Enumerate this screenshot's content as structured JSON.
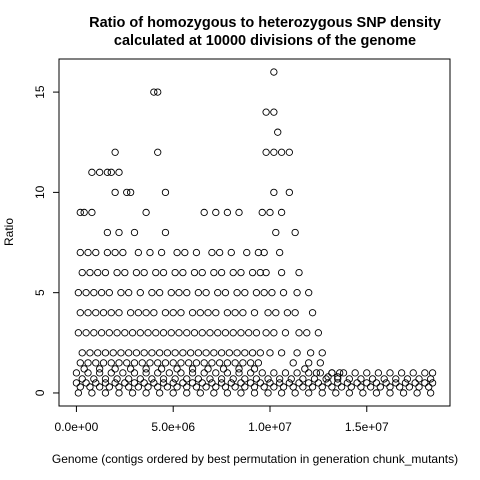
{
  "chart_data": {
    "type": "scatter",
    "title_line1": "Ratio of homozygous to heterozygous SNP density",
    "title_line2": "calculated at 10000 divisions of the genome",
    "xlabel": "Genome (contigs ordered by best permutation in generation chunk_mutants)",
    "ylabel": "Ratio",
    "xlim": [
      -900000,
      19300000
    ],
    "ylim": [
      -0.65,
      16.65
    ],
    "x_ticks": [
      0,
      5000000,
      10000000,
      15000000
    ],
    "x_tick_labels": [
      "0.0e+00",
      "5.0e+06",
      "1.0e+07",
      "1.5e+07"
    ],
    "y_ticks": [
      0,
      5,
      10,
      15
    ],
    "y_tick_labels": [
      "0",
      "5",
      "10",
      "15"
    ],
    "grid": false,
    "marker": "open-circle",
    "marker_color": "#000000",
    "x": [
      4000000,
      4200000,
      10200000,
      2000000,
      4200000,
      9800000,
      10200000,
      10400000,
      800000,
      1200000,
      1600000,
      1800000,
      2200000,
      2800000,
      4600000,
      2000000,
      2600000,
      3600000,
      9600000,
      10000000,
      10600000,
      200000,
      400000,
      800000,
      1600000,
      2200000,
      3000000,
      4600000,
      6600000,
      7200000,
      7800000,
      8400000,
      9800000,
      10200000,
      10600000,
      11000000,
      200000,
      600000,
      1000000,
      1600000,
      2000000,
      2400000,
      3200000,
      3800000,
      4400000,
      5200000,
      5600000,
      6200000,
      7000000,
      7400000,
      8000000,
      8800000,
      9400000,
      10200000,
      11000000,
      300000,
      700000,
      1100000,
      1500000,
      2100000,
      2500000,
      3100000,
      3500000,
      4100000,
      4500000,
      5100000,
      5500000,
      6100000,
      6500000,
      7100000,
      7500000,
      8100000,
      8500000,
      9100000,
      9500000,
      10300000,
      11300000,
      100000,
      500000,
      900000,
      1300000,
      1700000,
      2300000,
      2700000,
      3300000,
      3900000,
      4300000,
      4900000,
      5300000,
      5700000,
      6300000,
      6700000,
      7300000,
      7700000,
      8300000,
      8700000,
      9300000,
      9700000,
      10500000,
      11500000,
      12000000,
      200000,
      600000,
      1000000,
      1400000,
      1800000,
      2200000,
      2800000,
      3200000,
      3600000,
      4000000,
      4600000,
      5000000,
      5400000,
      6000000,
      6400000,
      6800000,
      7200000,
      7800000,
      8200000,
      8600000,
      9200000,
      9800000,
      10600000,
      11400000,
      12200000,
      100000,
      500000,
      900000,
      1300000,
      1700000,
      2100000,
      2500000,
      2900000,
      3300000,
      3700000,
      4100000,
      4500000,
      4900000,
      5300000,
      5700000,
      6100000,
      6500000,
      6900000,
      7300000,
      7700000,
      8100000,
      8500000,
      8900000,
      9300000,
      9700000,
      10100000,
      10700000,
      11300000,
      11900000,
      12500000,
      300000,
      700000,
      1100000,
      1500000,
      1900000,
      2300000,
      2700000,
      3100000,
      3500000,
      3900000,
      4300000,
      4700000,
      5100000,
      5500000,
      5900000,
      6300000,
      6700000,
      7100000,
      7500000,
      7900000,
      8300000,
      8700000,
      9100000,
      9500000,
      9900000,
      10300000,
      10900000,
      11500000,
      12100000,
      12700000,
      200000,
      600000,
      1000000,
      1400000,
      1800000,
      2200000,
      2600000,
      3000000,
      3400000,
      3800000,
      4200000,
      4600000,
      5000000,
      5400000,
      5800000,
      6200000,
      6600000,
      7000000,
      7400000,
      7800000,
      8200000,
      8600000,
      9000000,
      9400000,
      9800000,
      10200000,
      10800000,
      11400000,
      12000000,
      12600000,
      13200000,
      13600000,
      400000,
      1200000,
      2000000,
      2800000,
      3600000,
      4400000,
      5200000,
      6000000,
      6800000,
      7600000,
      8400000,
      9200000,
      10000000,
      10600000,
      11200000,
      11800000,
      12400000,
      13000000,
      13500000,
      0,
      600000,
      1200000,
      1800000,
      2400000,
      3000000,
      3600000,
      4200000,
      4800000,
      5400000,
      6000000,
      6600000,
      7200000,
      7800000,
      8400000,
      9000000,
      9600000,
      10200000,
      10800000,
      11400000,
      12000000,
      12600000,
      13200000,
      13800000,
      14400000,
      15000000,
      15600000,
      16200000,
      16800000,
      17400000,
      18000000,
      18400000,
      300000,
      900000,
      1500000,
      2100000,
      2700000,
      3300000,
      3900000,
      4500000,
      5100000,
      5700000,
      6300000,
      6900000,
      7500000,
      8100000,
      8700000,
      9300000,
      9900000,
      10500000,
      11100000,
      11700000,
      12300000,
      12900000,
      13500000,
      14100000,
      14700000,
      15300000,
      15900000,
      16500000,
      17100000,
      17700000,
      18300000,
      0,
      500000,
      1000000,
      1500000,
      2000000,
      2500000,
      3000000,
      3500000,
      4000000,
      4500000,
      5000000,
      5500000,
      6000000,
      6500000,
      7000000,
      7500000,
      8000000,
      8500000,
      9000000,
      9500000,
      10000000,
      10500000,
      11000000,
      11500000,
      12000000,
      12500000,
      13000000,
      13500000,
      14000000,
      14500000,
      15000000,
      15500000,
      16000000,
      16500000,
      17000000,
      17500000,
      18000000,
      18400000,
      200000,
      700000,
      1200000,
      1700000,
      2200000,
      2700000,
      3200000,
      3700000,
      4200000,
      4700000,
      5200000,
      5700000,
      6200000,
      6700000,
      7200000,
      7700000,
      8200000,
      8700000,
      9200000,
      9700000,
      10200000,
      10700000,
      11200000,
      11700000,
      12200000,
      12700000,
      13200000,
      13700000,
      14200000,
      14700000,
      15200000,
      15700000,
      16200000,
      16700000,
      17200000,
      17700000,
      18200000,
      100000,
      800000,
      1500000,
      2200000,
      2900000,
      3600000,
      4300000,
      5000000,
      5700000,
      6400000,
      7100000,
      7800000,
      8500000,
      9200000,
      9900000,
      10600000,
      11300000,
      12000000,
      12700000,
      13400000,
      14100000,
      14800000,
      15500000,
      16200000,
      16900000,
      17600000,
      18300000
    ],
    "y": [
      15,
      12,
      16,
      12,
      15,
      14,
      14,
      13,
      11,
      11,
      11,
      11,
      11,
      10,
      10,
      10,
      10,
      9,
      9,
      9,
      9,
      9,
      9,
      9,
      8,
      8,
      8,
      8,
      9,
      9,
      9,
      9,
      12,
      12,
      12,
      12,
      7,
      7,
      7,
      7,
      7,
      7,
      7,
      7,
      7,
      7,
      7,
      7,
      7,
      7,
      7,
      7,
      7,
      10,
      10,
      6,
      6,
      6,
      6,
      6,
      6,
      6,
      6,
      6,
      6,
      6,
      6,
      6,
      6,
      6,
      6,
      6,
      6,
      6,
      6,
      8,
      8,
      5,
      5,
      5,
      5,
      5,
      5,
      5,
      5,
      5,
      5,
      5,
      5,
      5,
      5,
      5,
      5,
      5,
      5,
      5,
      5,
      7,
      7,
      6,
      5,
      4,
      4,
      4,
      4,
      4,
      4,
      4,
      4,
      4,
      4,
      4,
      4,
      4,
      4,
      4,
      4,
      4,
      4,
      4,
      4,
      4,
      6,
      6,
      5,
      4,
      3,
      3,
      3,
      3,
      3,
      3,
      3,
      3,
      3,
      3,
      3,
      3,
      3,
      3,
      3,
      3,
      3,
      3,
      3,
      3,
      3,
      3,
      3,
      3,
      5,
      5,
      5,
      4,
      3,
      3,
      2,
      2,
      2,
      2,
      2,
      2,
      2,
      2,
      2,
      2,
      2,
      2,
      2,
      2,
      2,
      2,
      2,
      2,
      2,
      2,
      2,
      2,
      2,
      2,
      4,
      4,
      4,
      3,
      2,
      2,
      1.5,
      1.5,
      1.5,
      1.5,
      1.5,
      1.5,
      1.5,
      1.5,
      1.5,
      1.5,
      1.5,
      1.5,
      1.5,
      1.5,
      1.5,
      1.5,
      1.5,
      1.5,
      1.5,
      1.5,
      1.5,
      1.5,
      1.5,
      1.5,
      3,
      3,
      3,
      2,
      1.5,
      1.5,
      1,
      1,
      1.2,
      1.2,
      1.2,
      1.2,
      1.2,
      1.2,
      1.2,
      1.2,
      1.2,
      1.2,
      1.2,
      1.2,
      2,
      2,
      1.5,
      1.2,
      1,
      0.8,
      0.8,
      1,
      1,
      1,
      1,
      1,
      1,
      1,
      1,
      1,
      1,
      1,
      1,
      1,
      1,
      1,
      1,
      1,
      1,
      1,
      1,
      1,
      1,
      1,
      1,
      1,
      1,
      1,
      1,
      1,
      1,
      1,
      1,
      0.7,
      0.7,
      0.7,
      0.7,
      0.7,
      0.7,
      0.7,
      0.7,
      0.7,
      0.7,
      0.7,
      0.7,
      0.7,
      0.7,
      0.7,
      0.7,
      0.7,
      0.7,
      0.7,
      0.7,
      0.7,
      0.7,
      0.7,
      0.7,
      0.7,
      0.7,
      0.7,
      0.7,
      0.7,
      0.7,
      0.7,
      0.5,
      0.5,
      0.5,
      0.5,
      0.5,
      0.5,
      0.5,
      0.5,
      0.5,
      0.5,
      0.5,
      0.5,
      0.5,
      0.5,
      0.5,
      0.5,
      0.5,
      0.5,
      0.5,
      0.5,
      0.5,
      0.5,
      0.5,
      0.5,
      0.5,
      0.5,
      0.5,
      0.5,
      0.5,
      0.5,
      0.5,
      0.5,
      0.5,
      0.5,
      0.5,
      0.5,
      0.5,
      0.5,
      0.3,
      0.3,
      0.3,
      0.3,
      0.3,
      0.3,
      0.3,
      0.3,
      0.3,
      0.3,
      0.3,
      0.3,
      0.3,
      0.3,
      0.3,
      0.3,
      0.3,
      0.3,
      0.3,
      0.3,
      0.3,
      0.3,
      0.3,
      0.3,
      0.3,
      0.3,
      0.3,
      0.3,
      0.3,
      0.3,
      0.3,
      0.3,
      0.3,
      0.3,
      0.3,
      0.3,
      0.3,
      0,
      0,
      0,
      0,
      0,
      0,
      0,
      0,
      0,
      0,
      0,
      0,
      0,
      0,
      0,
      0,
      0,
      0,
      0,
      0,
      0,
      0,
      0,
      0,
      0,
      0,
      0
    ]
  }
}
